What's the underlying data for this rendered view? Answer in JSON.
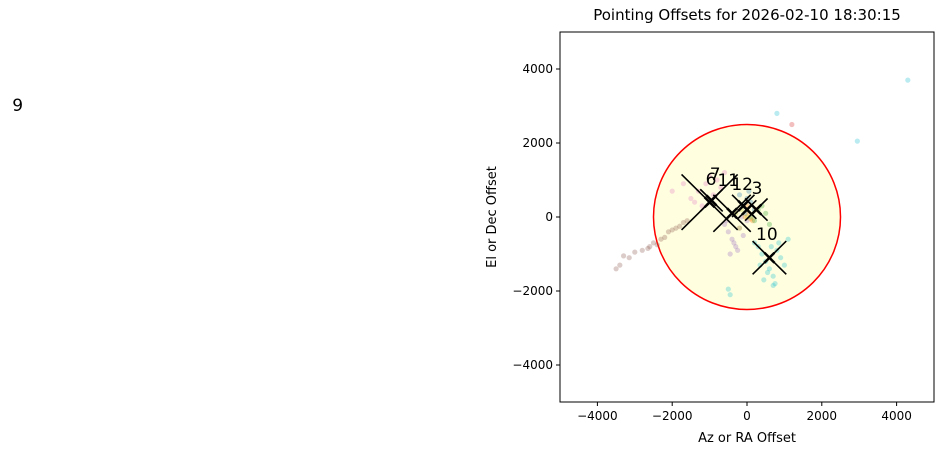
{
  "chart_data": {
    "type": "scatter",
    "title": "Pointing Offsets for 2026-02-10 18:30:15",
    "x_label": "Az or RA Offset",
    "y_label": "El or Dec Offset",
    "xlim": [
      -5000,
      5000
    ],
    "ylim": [
      -5000,
      5000
    ],
    "xticks": [
      {
        "value": -4000,
        "label": "−4000"
      },
      {
        "value": -2000,
        "label": "−2000"
      },
      0,
      2000,
      4000
    ],
    "yticks": [
      {
        "value": -4000,
        "label": "−4000"
      },
      {
        "value": -2000,
        "label": "−2000"
      },
      0,
      2000,
      4000
    ],
    "circle": {
      "x": 0,
      "y": 0,
      "r": 2500,
      "color": "#ff0000",
      "fill": "#ffffe0"
    },
    "series": [
      {
        "color": "#8c564b",
        "x": [
          -3500,
          -3400,
          -3150,
          -3000,
          -2800,
          -2600,
          -2500,
          -2400,
          -2300,
          -2200,
          -2100,
          -2000,
          -1900,
          -1800,
          -1700,
          -1600,
          -3300,
          -2650
        ],
        "values": [
          -1400,
          -1300,
          -1100,
          -950,
          -900,
          -800,
          -700,
          -750,
          -600,
          -550,
          -400,
          -350,
          -300,
          -250,
          -150,
          -100,
          -1050,
          -850
        ]
      },
      {
        "color": "#17becf",
        "x": [
          300,
          400,
          500,
          600,
          700,
          800,
          900,
          1000,
          450,
          650,
          750,
          550,
          350,
          850,
          1100,
          2950,
          4300,
          800,
          200,
          700,
          -500,
          -450
        ],
        "values": [
          -800,
          -1000,
          -1200,
          -1400,
          -1600,
          -900,
          -1100,
          -1300,
          -1700,
          -800,
          -1800,
          -1500,
          -1300,
          -700,
          -600,
          2050,
          3700,
          2800,
          -700,
          -1850,
          -1950,
          -2100
        ]
      },
      {
        "color": "#9467bd",
        "x": [
          -600,
          -500,
          -400,
          -300,
          -200,
          -100,
          0,
          -450,
          -350,
          -250,
          -150,
          -550
        ],
        "values": [
          -200,
          -400,
          -600,
          -800,
          -300,
          -500,
          -100,
          -1000,
          -700,
          -900,
          0,
          -100
        ]
      },
      {
        "color": "#e377c2",
        "x": [
          -1500,
          -1300,
          -1100,
          -900,
          -700,
          -1200,
          -1000,
          -800,
          -1400,
          -600,
          -1700,
          -2000
        ],
        "values": [
          500,
          700,
          900,
          600,
          800,
          300,
          1100,
          1000,
          400,
          1200,
          900,
          700
        ]
      },
      {
        "color": "#1f77b4",
        "x": [
          -100,
          0,
          100,
          -200,
          200,
          50,
          -50
        ],
        "values": [
          300,
          500,
          400,
          600,
          200,
          700,
          100
        ]
      },
      {
        "color": "#ff7f0e",
        "x": [
          -50,
          50,
          150,
          250,
          0,
          100
        ],
        "values": [
          0,
          100,
          -100,
          200,
          300,
          -50
        ]
      },
      {
        "color": "#2ca02c",
        "x": [
          100,
          300,
          500,
          200,
          400,
          600
        ],
        "values": [
          0,
          200,
          100,
          -100,
          300,
          -200
        ]
      },
      {
        "color": "#d62728",
        "x": [
          1200
        ],
        "values": [
          2500
        ]
      },
      {
        "color": "#bcbd22",
        "x": [
          -300,
          -150,
          0,
          -200
        ],
        "values": [
          100,
          200,
          0,
          -300
        ]
      }
    ],
    "crosses": [
      {
        "x": -1000,
        "y": 400,
        "size": 750
      },
      {
        "x": -950,
        "y": 450,
        "size": 300
      },
      {
        "x": -400,
        "y": 100,
        "size": 500
      },
      {
        "x": -100,
        "y": 300,
        "size": 300
      },
      {
        "x": 250,
        "y": 200,
        "size": 300
      },
      {
        "x": 600,
        "y": -1100,
        "size": 450
      },
      {
        "x": 0,
        "y": 200,
        "size": 250
      }
    ],
    "annotations": [
      {
        "text": "6",
        "x": -960,
        "y": 865
      },
      {
        "text": "7",
        "x": -850,
        "y": 1000
      },
      {
        "text": "11",
        "x": -500,
        "y": 840
      },
      {
        "text": "12",
        "x": -130,
        "y": 730
      },
      {
        "text": "3",
        "x": 270,
        "y": 620
      },
      {
        "text": "10",
        "x": 530,
        "y": -620
      },
      {
        "text": "9",
        "x": -19500,
        "y": 2860
      }
    ]
  }
}
